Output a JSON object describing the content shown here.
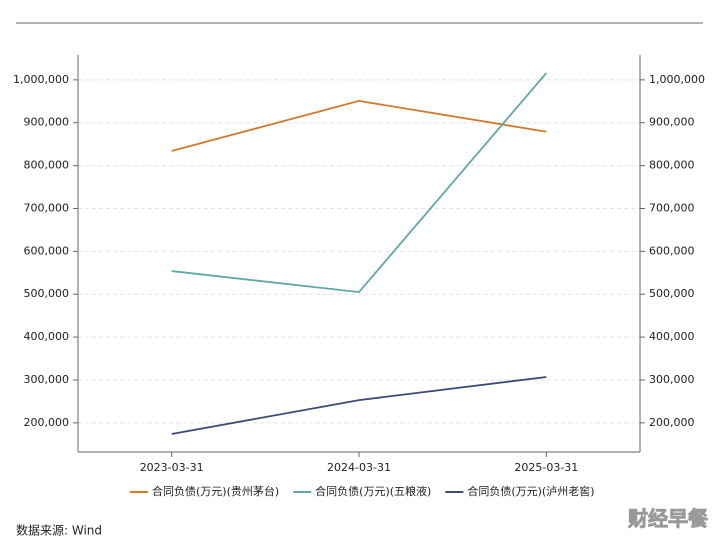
{
  "chart_data": {
    "type": "line",
    "x": [
      "2023-03-31",
      "2024-03-31",
      "2025-03-31"
    ],
    "series": [
      {
        "name": "合同负债(万元)(贵州茅台)",
        "color": "#d4782a",
        "values": [
          834000,
          951000,
          879000
        ]
      },
      {
        "name": "合同负债(万元)(五粮液)",
        "color": "#5fa8a8",
        "values": [
          554000,
          505000,
          1016000
        ]
      },
      {
        "name": "合同负债(万元)(泸州老窖)",
        "color": "#3d4a73",
        "values": [
          174000,
          253000,
          307000
        ]
      }
    ],
    "ylim": [
      132000,
      1058000
    ],
    "yticks": [
      {
        "value": 200000,
        "label": "200,000"
      },
      {
        "value": 300000,
        "label": "300,000"
      },
      {
        "value": 400000,
        "label": "400,000"
      },
      {
        "value": 500000,
        "label": "500,000"
      },
      {
        "value": 600000,
        "label": "600,000"
      },
      {
        "value": 700000,
        "label": "700,000"
      },
      {
        "value": 800000,
        "label": "800,000"
      },
      {
        "value": 900000,
        "label": "900,000"
      },
      {
        "value": 1000000,
        "label": "1,000,000"
      }
    ],
    "y2lim": [
      132000,
      1058000
    ],
    "y2ticks": [
      {
        "value": 200000,
        "label": "200,000"
      },
      {
        "value": 300000,
        "label": "300,000"
      },
      {
        "value": 400000,
        "label": "400,000"
      },
      {
        "value": 500000,
        "label": "500,000"
      },
      {
        "value": 600000,
        "label": "600,000"
      },
      {
        "value": 700000,
        "label": "700,000"
      },
      {
        "value": 800000,
        "label": "800,000"
      },
      {
        "value": 900000,
        "label": "900,000"
      },
      {
        "value": 1000000,
        "label": "1,000,000"
      }
    ],
    "grid": true,
    "legend": "bottom",
    "source": "数据来源: Wind",
    "watermark": "财经早餐"
  }
}
